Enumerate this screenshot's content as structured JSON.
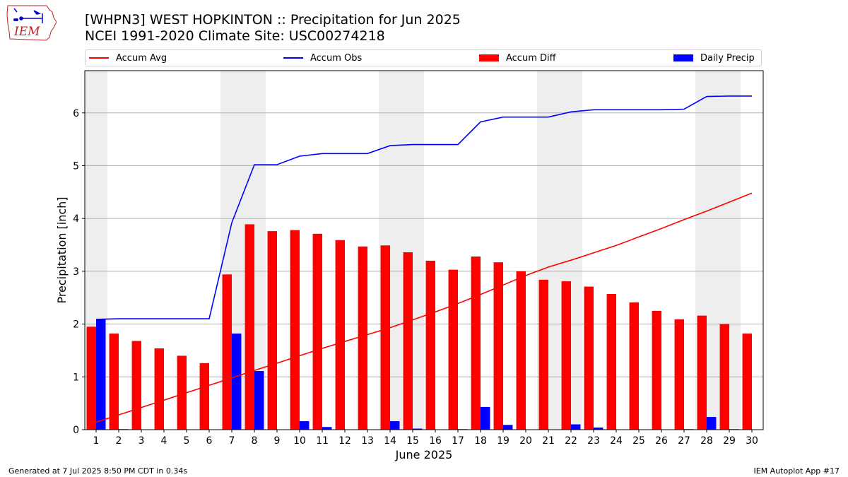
{
  "header": {
    "title_line1": "[WHPN3] WEST HOPKINTON :: Precipitation for Jun 2025",
    "title_line2": "NCEI 1991-2020 Climate Site: USC00274218"
  },
  "logo": {
    "text": "IEM",
    "icon": "iem-iowa-map-logo"
  },
  "footer": {
    "left": "Generated at 7 Jul 2025 8:50 PM CDT in 0.34s",
    "right": "IEM Autoplot App #17"
  },
  "colors": {
    "avg": "#ff0000",
    "obs": "#0000ff",
    "diff": "#ff0000",
    "daily": "#0000ff",
    "weekend": "#eeeeee",
    "grid": "#b0b0b0"
  },
  "chart_data": {
    "type": "bar",
    "xlabel": "June 2025",
    "ylabel": "Precipitation [inch]",
    "ylim": [
      0,
      6.8
    ],
    "yticks": [
      0,
      1,
      2,
      3,
      4,
      5,
      6
    ],
    "grid": "horizontal",
    "legend_position": "top",
    "categories": [
      "1",
      "2",
      "3",
      "4",
      "5",
      "6",
      "7",
      "8",
      "9",
      "10",
      "11",
      "12",
      "13",
      "14",
      "15",
      "16",
      "17",
      "18",
      "19",
      "20",
      "21",
      "22",
      "23",
      "24",
      "25",
      "26",
      "27",
      "28",
      "29",
      "30"
    ],
    "shaded_days": [
      1,
      7,
      8,
      14,
      15,
      21,
      22,
      28,
      29
    ],
    "series": [
      {
        "name": "Accum Avg",
        "kind": "line",
        "values": [
          0.14,
          0.28,
          0.42,
          0.56,
          0.7,
          0.84,
          0.98,
          1.12,
          1.26,
          1.4,
          1.54,
          1.67,
          1.8,
          1.93,
          2.08,
          2.23,
          2.39,
          2.56,
          2.74,
          2.92,
          3.08,
          3.21,
          3.35,
          3.49,
          3.65,
          3.81,
          3.98,
          4.14,
          4.31,
          4.48
        ]
      },
      {
        "name": "Accum Obs",
        "kind": "line",
        "values": [
          2.09,
          2.1,
          2.1,
          2.1,
          2.1,
          2.1,
          3.92,
          5.02,
          5.02,
          5.18,
          5.23,
          5.23,
          5.23,
          5.38,
          5.4,
          5.4,
          5.4,
          5.83,
          5.92,
          5.92,
          5.92,
          6.02,
          6.06,
          6.06,
          6.06,
          6.06,
          6.07,
          6.31,
          6.32,
          6.32
        ]
      },
      {
        "name": "Accum Diff",
        "kind": "bar",
        "values": [
          1.95,
          1.82,
          1.68,
          1.54,
          1.4,
          1.26,
          2.94,
          3.89,
          3.76,
          3.78,
          3.71,
          3.59,
          3.47,
          3.49,
          3.36,
          3.2,
          3.03,
          3.28,
          3.17,
          3.0,
          2.84,
          2.81,
          2.71,
          2.57,
          2.41,
          2.25,
          2.09,
          2.16,
          2.0,
          1.82
        ]
      },
      {
        "name": "Daily Precip",
        "kind": "bar",
        "values": [
          2.09,
          0.01,
          0.0,
          0.0,
          0.0,
          0.0,
          1.82,
          1.11,
          0.0,
          0.16,
          0.05,
          0.0,
          0.0,
          0.16,
          0.02,
          0.0,
          0.01,
          0.43,
          0.09,
          0.0,
          0.0,
          0.1,
          0.04,
          0.0,
          0.0,
          0.0,
          0.01,
          0.24,
          0.01,
          0.0
        ]
      }
    ]
  }
}
